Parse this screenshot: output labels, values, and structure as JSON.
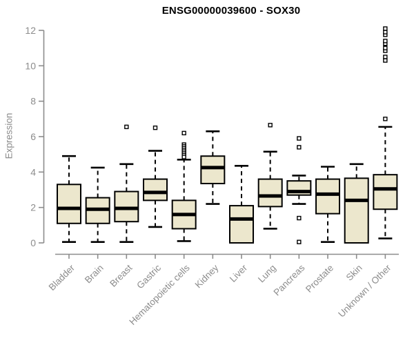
{
  "chart_data": {
    "type": "boxplot",
    "title": "ENSG00000039600 - SOX30",
    "ylabel": "Expression",
    "xlabel": "",
    "ylim": [
      0,
      12
    ],
    "yticks": [
      0,
      2,
      4,
      6,
      8,
      10,
      12
    ],
    "grid": false,
    "legend": "none",
    "categories": [
      "Bladder",
      "Brain",
      "Breast",
      "Gastric",
      "Hematopoietic cells",
      "Kidney",
      "Liver",
      "Lung",
      "Pancreas",
      "Prostate",
      "Skin",
      "Unknown / Other"
    ],
    "boxes": [
      {
        "name": "Bladder",
        "low": 0.05,
        "q1": 1.1,
        "median": 1.95,
        "q3": 3.3,
        "high": 4.9,
        "outliers": []
      },
      {
        "name": "Brain",
        "low": 0.05,
        "q1": 1.1,
        "median": 1.9,
        "q3": 2.55,
        "high": 4.25,
        "outliers": []
      },
      {
        "name": "Breast",
        "low": 0.05,
        "q1": 1.2,
        "median": 1.95,
        "q3": 2.9,
        "high": 4.45,
        "outliers": [
          6.55
        ]
      },
      {
        "name": "Gastric",
        "low": 0.9,
        "q1": 2.4,
        "median": 2.85,
        "q3": 3.6,
        "high": 5.2,
        "outliers": [
          6.5
        ]
      },
      {
        "name": "Hematopoietic cells",
        "low": 0.1,
        "q1": 0.8,
        "median": 1.6,
        "q3": 2.4,
        "high": 4.7,
        "outliers": [
          6.2,
          5.55,
          5.45,
          5.35,
          5.25,
          5.15,
          5.05,
          4.95,
          4.85
        ]
      },
      {
        "name": "Kidney",
        "low": 2.2,
        "q1": 3.35,
        "median": 4.25,
        "q3": 4.9,
        "high": 6.3,
        "outliers": []
      },
      {
        "name": "Liver",
        "low": 0.0,
        "q1": 0.0,
        "median": 1.35,
        "q3": 2.1,
        "high": 4.35,
        "outliers": []
      },
      {
        "name": "Lung",
        "low": 0.8,
        "q1": 2.05,
        "median": 2.65,
        "q3": 3.6,
        "high": 5.15,
        "outliers": [
          6.65
        ]
      },
      {
        "name": "Pancreas",
        "low": 2.2,
        "q1": 2.7,
        "median": 2.9,
        "q3": 3.5,
        "high": 3.8,
        "outliers": [
          5.9,
          5.4,
          1.4,
          0.05
        ]
      },
      {
        "name": "Prostate",
        "low": 0.05,
        "q1": 1.65,
        "median": 2.75,
        "q3": 3.6,
        "high": 4.3,
        "outliers": []
      },
      {
        "name": "Skin",
        "low": 0.0,
        "q1": 0.0,
        "median": 2.4,
        "q3": 3.65,
        "high": 4.45,
        "outliers": []
      },
      {
        "name": "Unknown / Other",
        "low": 0.25,
        "q1": 1.9,
        "median": 3.05,
        "q3": 3.85,
        "high": 6.55,
        "outliers": [
          7.0,
          10.3,
          10.5,
          10.85,
          11.0,
          11.25,
          11.4,
          11.75,
          11.9,
          12.1
        ]
      }
    ],
    "colors": {
      "box_fill": "#ece7cd",
      "box_border": "#000000",
      "median": "#000000",
      "whisker": "#000000",
      "outlier_fill": "#ffffff",
      "outlier_border": "#000000",
      "axis": "#8c8c8c",
      "tick_label": "#8c8c8c",
      "title": "#000000"
    }
  }
}
